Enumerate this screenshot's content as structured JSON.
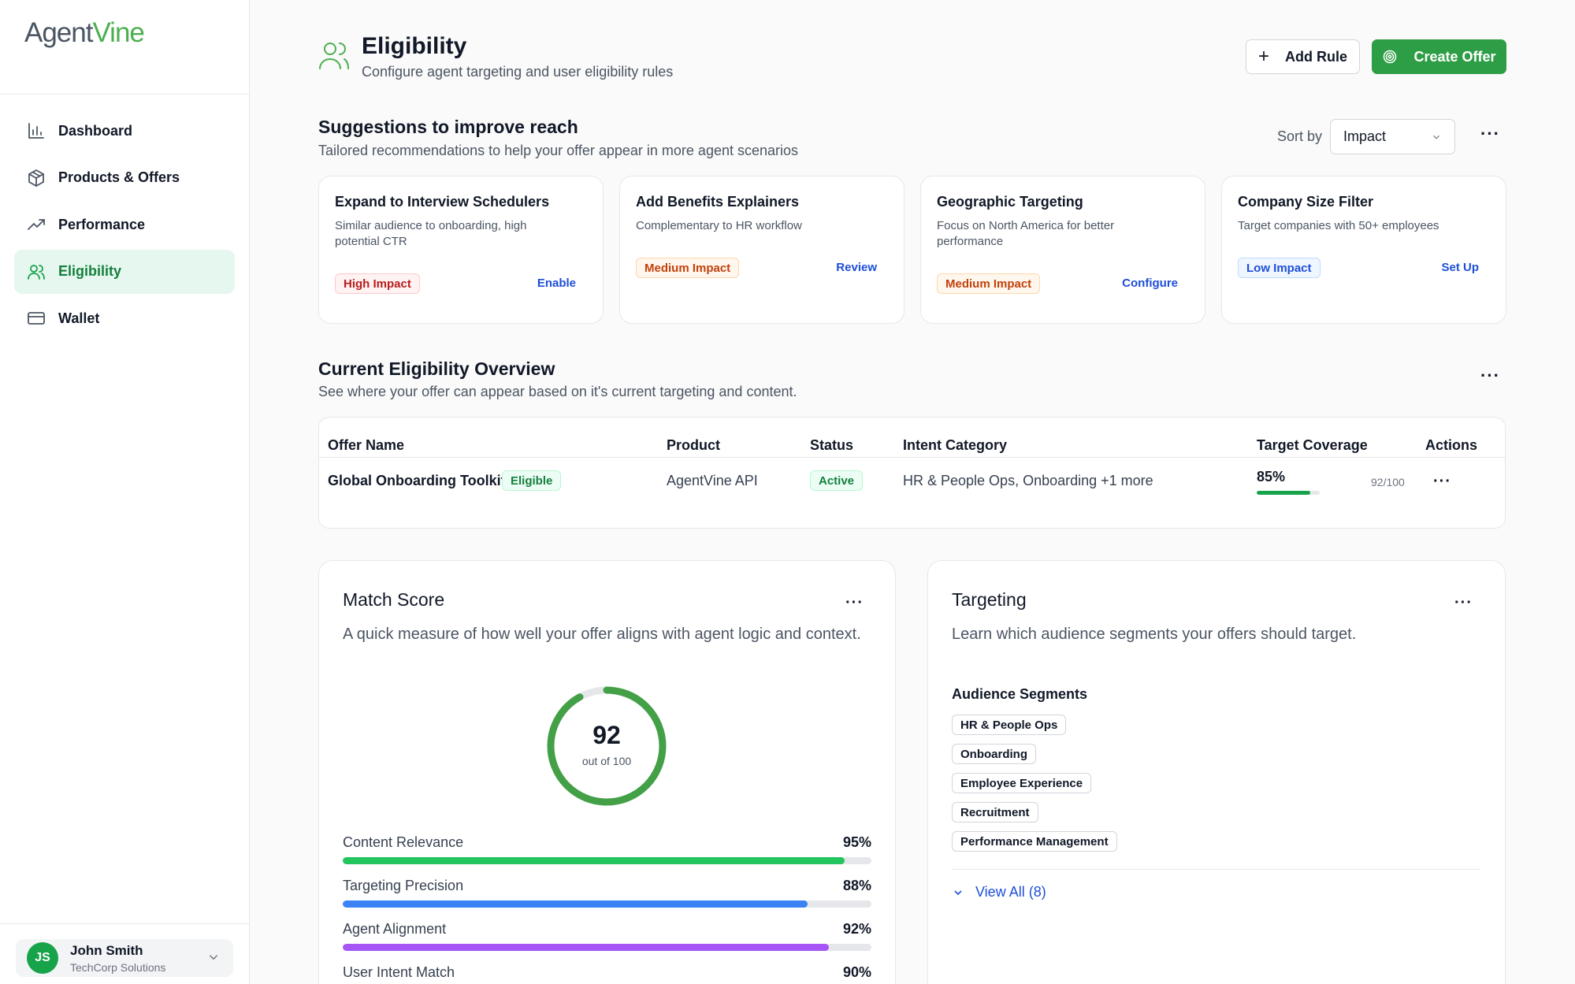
{
  "brand": {
    "name_part1": "Agent",
    "name_part2": "Vine",
    "accent_color": "#4caf50"
  },
  "sidebar": {
    "items": [
      {
        "label": "Dashboard",
        "icon": "bar-chart-icon",
        "active": false
      },
      {
        "label": "Products & Offers",
        "icon": "box-icon",
        "active": false
      },
      {
        "label": "Performance",
        "icon": "trend-up-icon",
        "active": false
      },
      {
        "label": "Eligibility",
        "icon": "users-icon",
        "active": true
      },
      {
        "label": "Wallet",
        "icon": "card-icon",
        "active": false
      }
    ],
    "user": {
      "initials": "JS",
      "name": "John Smith",
      "company": "TechCorp Solutions"
    }
  },
  "header": {
    "title": "Eligibility",
    "subtitle": "Configure agent targeting and user eligibility rules",
    "add_rule_label": "Add Rule",
    "create_offer_label": "Create Offer"
  },
  "suggestions": {
    "title": "Suggestions to improve reach",
    "subtitle": "Tailored recommendations to help your offer appear in more agent scenarios",
    "sort_label": "Sort by",
    "sort_value": "Impact",
    "cards": [
      {
        "title": "Expand to Interview Schedulers",
        "desc": "Similar audience to onboarding, high potential CTR",
        "impact": "High Impact",
        "action": "Enable"
      },
      {
        "title": "Add Benefits Explainers",
        "desc": "Complementary to HR workflow",
        "impact": "Medium Impact",
        "action": "Review"
      },
      {
        "title": "Geographic Targeting",
        "desc": "Focus on North America for better performance",
        "impact": "Medium Impact",
        "action": "Configure"
      },
      {
        "title": "Company Size Filter",
        "desc": "Target companies with 50+ employees",
        "impact": "Low Impact",
        "action": "Set Up"
      }
    ]
  },
  "overview": {
    "title": "Current Eligibility Overview",
    "subtitle": "See where your offer can appear based on it's current targeting and content.",
    "columns": [
      "Offer Name",
      "Product",
      "Status",
      "Intent Category",
      "Target Coverage",
      "Actions"
    ],
    "rows": [
      {
        "offer_name": "Global Onboarding Toolkit",
        "badge": "Eligible",
        "product": "AgentVine API",
        "status": "Active",
        "intent": "HR & People Ops, Onboarding +1 more",
        "coverage_pct": "85%",
        "coverage_value": 0.85,
        "score": "92/100"
      }
    ]
  },
  "match_score": {
    "title": "Match Score",
    "subtitle": "A quick measure of how well your offer aligns with agent logic and context.",
    "score": "92",
    "score_value": 92,
    "score_label": "out of 100",
    "metrics": [
      {
        "label": "Content Relevance",
        "value": "95%",
        "fraction": 0.95,
        "color": "#22c55e"
      },
      {
        "label": "Targeting Precision",
        "value": "88%",
        "fraction": 0.88,
        "color": "#3b82f6"
      },
      {
        "label": "Agent Alignment",
        "value": "92%",
        "fraction": 0.92,
        "color": "#a855f7"
      },
      {
        "label": "User Intent Match",
        "value": "90%",
        "fraction": 0.9,
        "color": "#f59e0b"
      }
    ]
  },
  "targeting": {
    "title": "Targeting",
    "subtitle": "Learn which audience segments your offers should target.",
    "segments_title": "Audience Segments",
    "segments": [
      "HR & People Ops",
      "Onboarding",
      "Employee Experience",
      "Recruitment",
      "Performance Management"
    ],
    "view_all": "View All (8)"
  }
}
